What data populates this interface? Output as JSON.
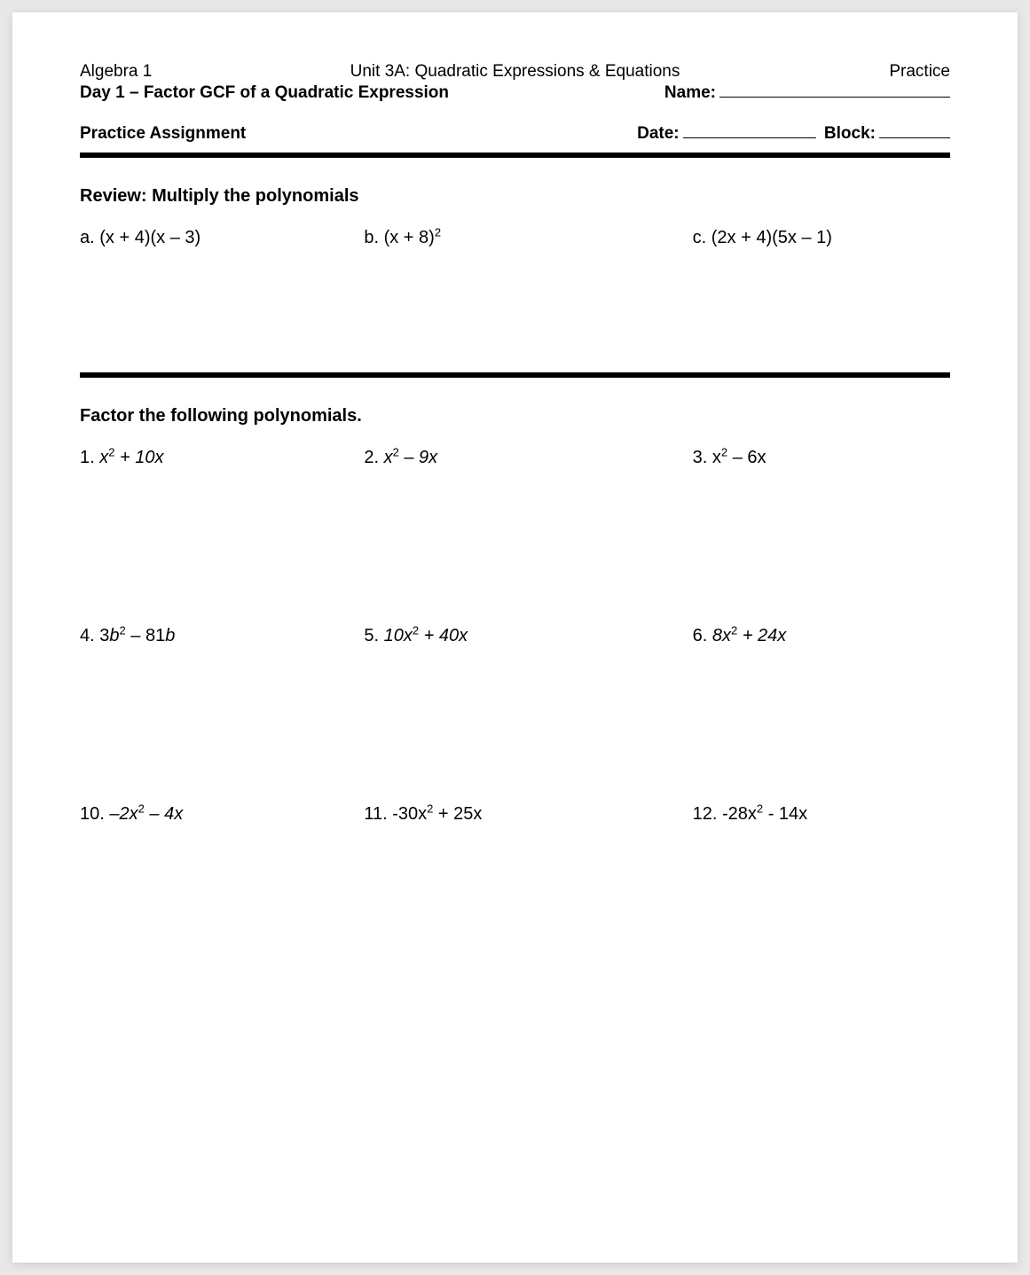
{
  "header": {
    "course": "Algebra 1",
    "unit": "Unit 3A: Quadratic Expressions & Equations",
    "kind": "Practice",
    "day": "Day 1 – Factor GCF of a Quadratic Expression",
    "name_label": "Name:",
    "assignment": "Practice Assignment",
    "date_label": "Date:",
    "block_label": "Block:"
  },
  "review": {
    "title": "Review: Multiply the polynomials",
    "a_label": "a. (x + 4)(x – 3)",
    "b_pre": "b. (x + 8)",
    "b_sup": "2",
    "c_label": "c. (2x + 4)(5x – 1)"
  },
  "factor": {
    "title": "Factor the following polynomials.",
    "p1_n": "1.  ",
    "p2_n": "2.  ",
    "p3_n": "3. ",
    "p4_n": "4.  ",
    "p5_n": "5.  ",
    "p6_n": "6.  ",
    "p10_n": "10.  ",
    "p11_n": "11. ",
    "p12_n": "12. ",
    "p3_tail": " – 6x",
    "p11_tail": " + 25x",
    "p12_tail": " - 14x"
  }
}
